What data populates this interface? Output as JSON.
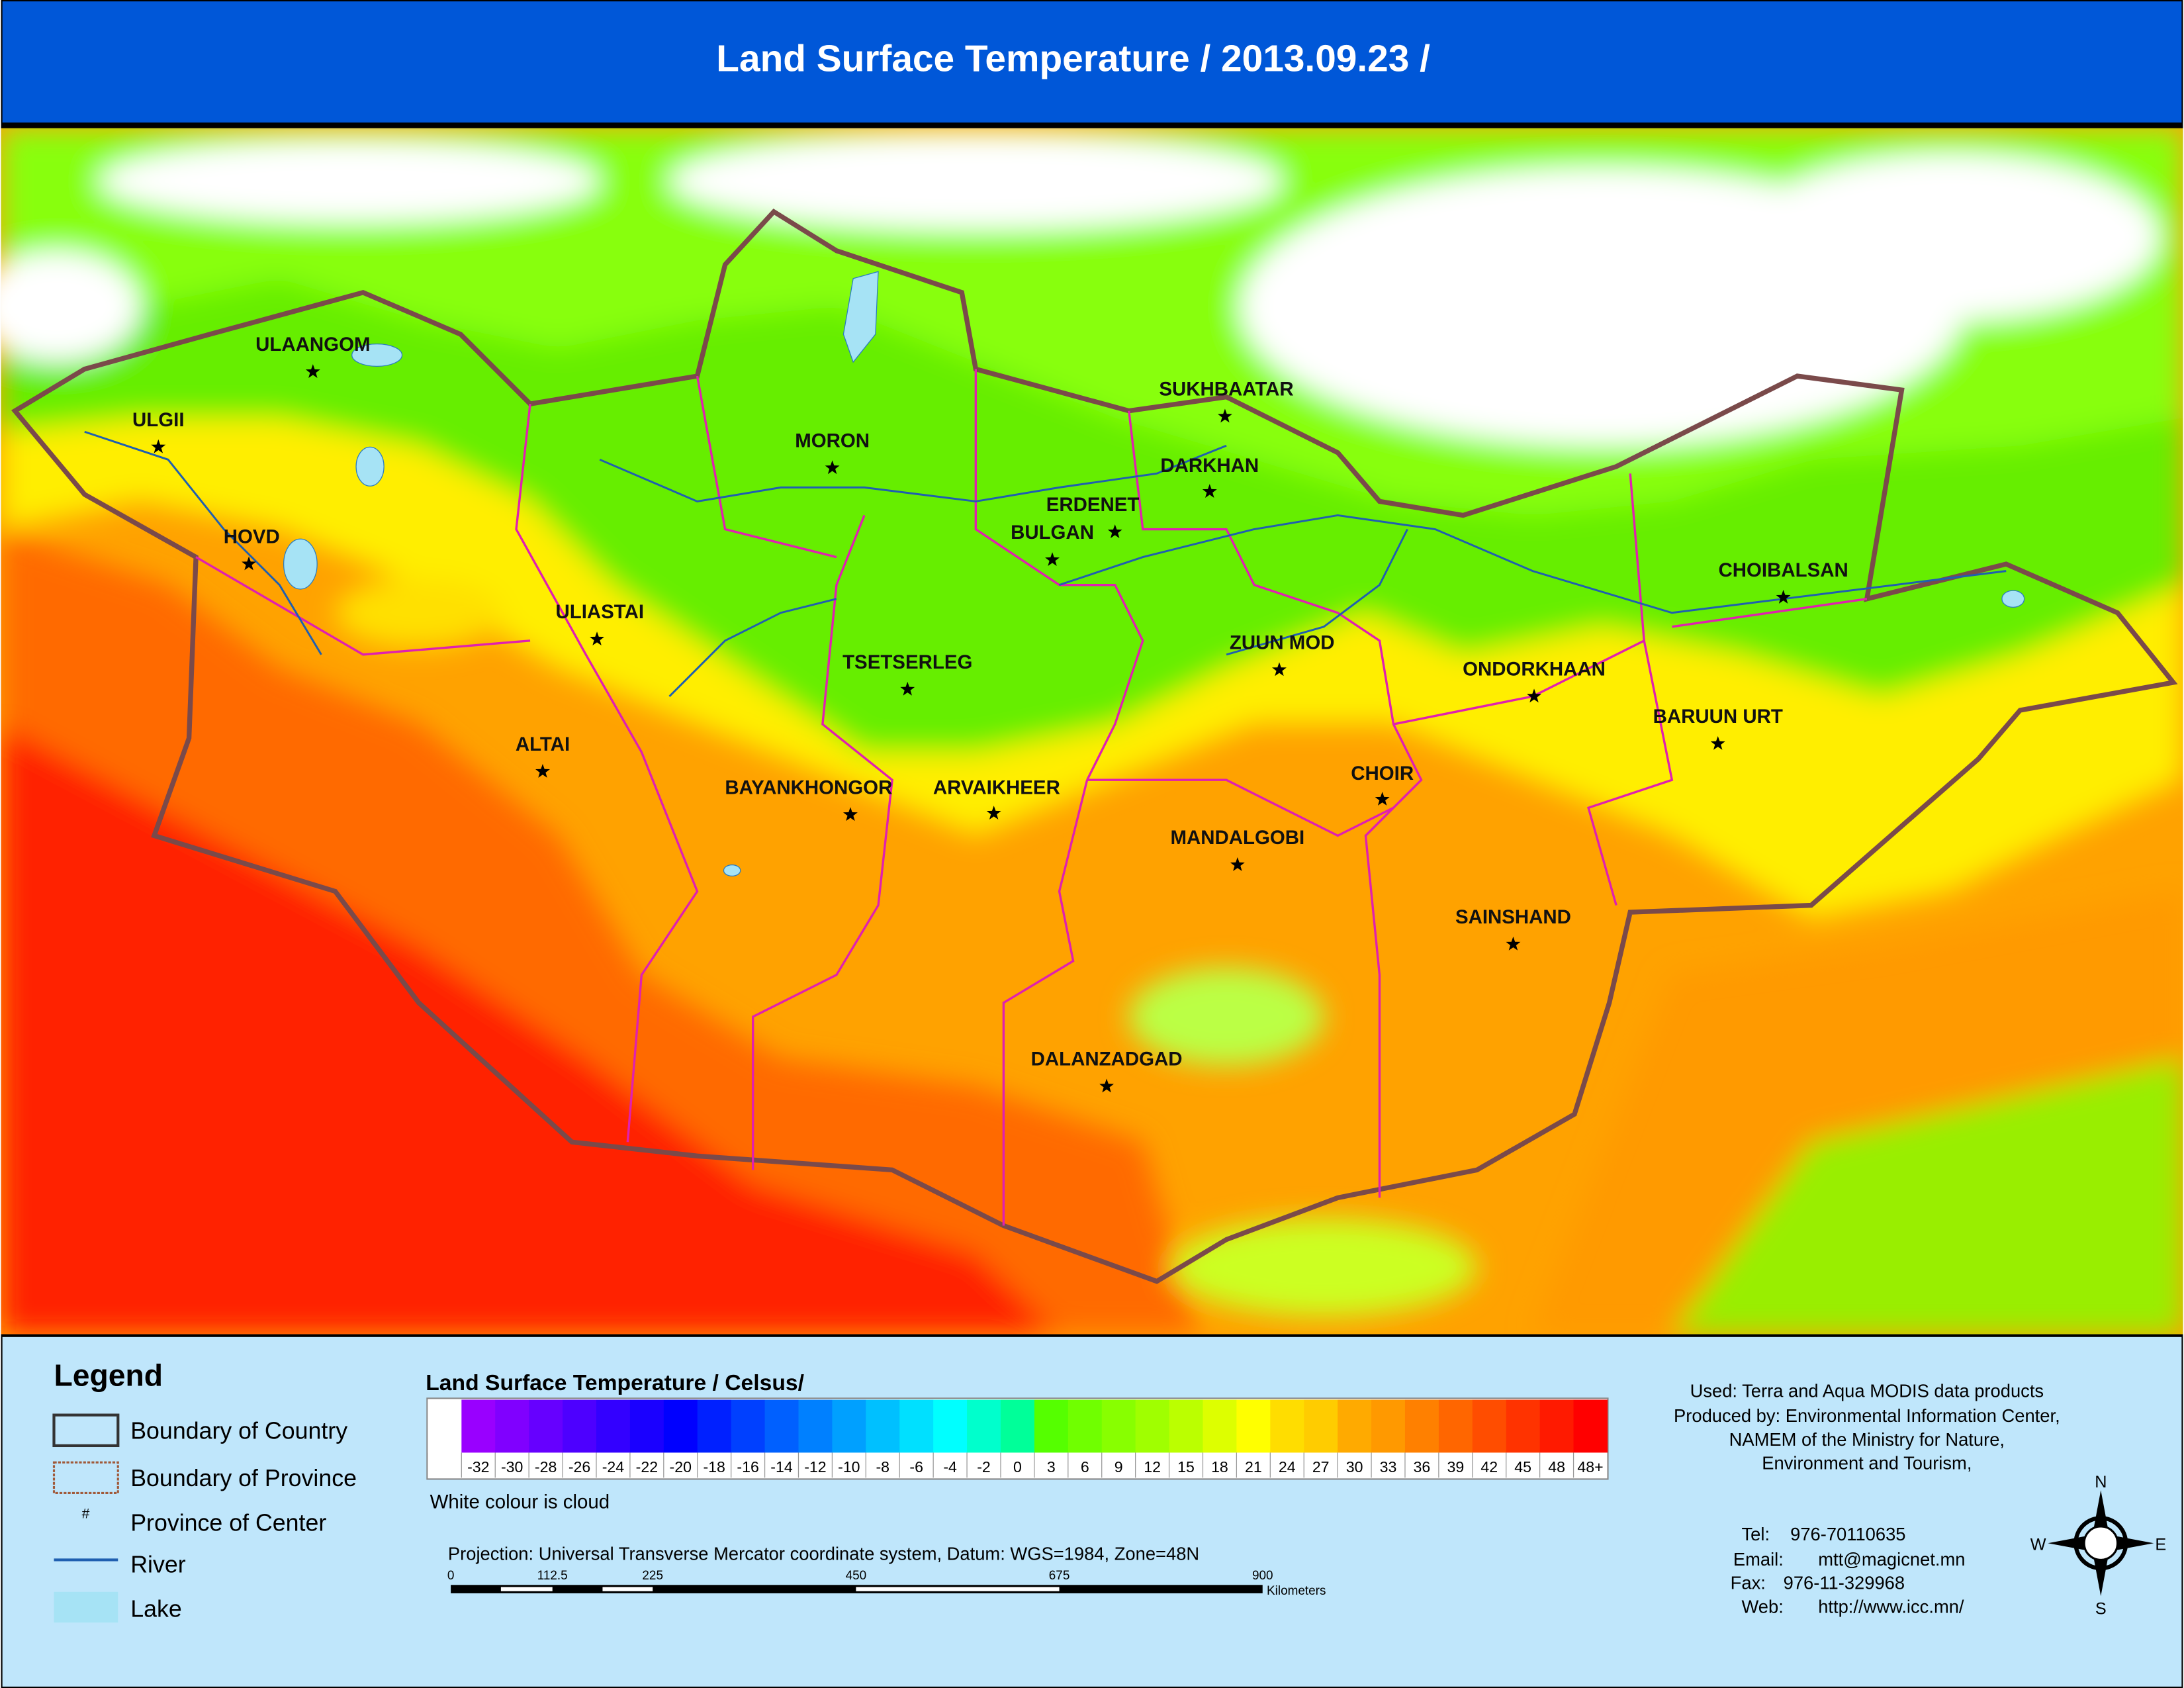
{
  "header": {
    "title": "Land Surface Temperature / 2013.09.23 /"
  },
  "map": {
    "cities": [
      "ULAANGOM",
      "ULGII",
      "HOVD",
      "ULIASTAI",
      "ALTAI",
      "MORON",
      "ERDENET",
      "BULGAN",
      "SUKHBAATAR",
      "DARKHAN",
      "ZUUN MOD",
      "TSETSERLEG",
      "BAYANKHONGOR",
      "ARVAIKHEER",
      "MANDALGOBI",
      "CHOIR",
      "ONDORKHAAN",
      "CHOIBALSAN",
      "BARUUN URT",
      "SAINSHAND",
      "DALANZADGAD"
    ]
  },
  "legend": {
    "title": "Legend",
    "items": [
      "Boundary of Country",
      "Boundary of Province",
      "Province of Center",
      "River",
      "Lake"
    ],
    "province_symbol": "#"
  },
  "color_scale": {
    "title": "Land Surface Temperature / Celsus/",
    "cloud_color": "#ffffff",
    "labels": [
      "-32",
      "-30",
      "-28",
      "-26",
      "-24",
      "-22",
      "-20",
      "-18",
      "-16",
      "-14",
      "-12",
      "-10",
      "-8",
      "-6",
      "-4",
      "-2",
      "0",
      "3",
      "6",
      "9",
      "12",
      "15",
      "18",
      "21",
      "24",
      "27",
      "30",
      "33",
      "36",
      "39",
      "42",
      "45",
      "48",
      "48+"
    ],
    "colors": [
      "#9900ff",
      "#8000ff",
      "#6600ff",
      "#4d00ff",
      "#3300ff",
      "#1a00ff",
      "#0000ff",
      "#0020ff",
      "#0040ff",
      "#0060ff",
      "#0080ff",
      "#00a0ff",
      "#00c0ff",
      "#00e0ff",
      "#00ffff",
      "#00ffcc",
      "#00ff99",
      "#55ff00",
      "#70ff00",
      "#88ff00",
      "#a0ff00",
      "#bbff00",
      "#ddff00",
      "#ffff00",
      "#ffdd00",
      "#ffcc00",
      "#ffaa00",
      "#ff9900",
      "#ff8000",
      "#ff6600",
      "#ff4d00",
      "#ff3300",
      "#ff1a00",
      "#ff0000"
    ],
    "note": "White colour is cloud"
  },
  "projection": {
    "text": "Projection: Universal Transverse Mercator coordinate system, Datum: WGS=1984, Zone=48N",
    "scale_labels": [
      "0",
      "112.5",
      "225",
      "450",
      "675",
      "900"
    ],
    "unit": "Kilometers"
  },
  "credits": {
    "lines": [
      "Used: Terra and Aqua MODIS data products",
      "Produced by: Environmental Information Center,",
      "NAMEM of the Ministry for Nature,",
      "Environment and Tourism,"
    ],
    "contacts": [
      {
        "label": "Tel:",
        "value": "976-70110635"
      },
      {
        "label": "Email:",
        "value": "mtt@magicnet.mn"
      },
      {
        "label": "Fax:",
        "value": "976-11-329968"
      },
      {
        "label": "Web:",
        "value": "http://www.icc.mn/"
      }
    ]
  },
  "compass": {
    "n": "N",
    "e": "E",
    "s": "S",
    "w": "W"
  }
}
